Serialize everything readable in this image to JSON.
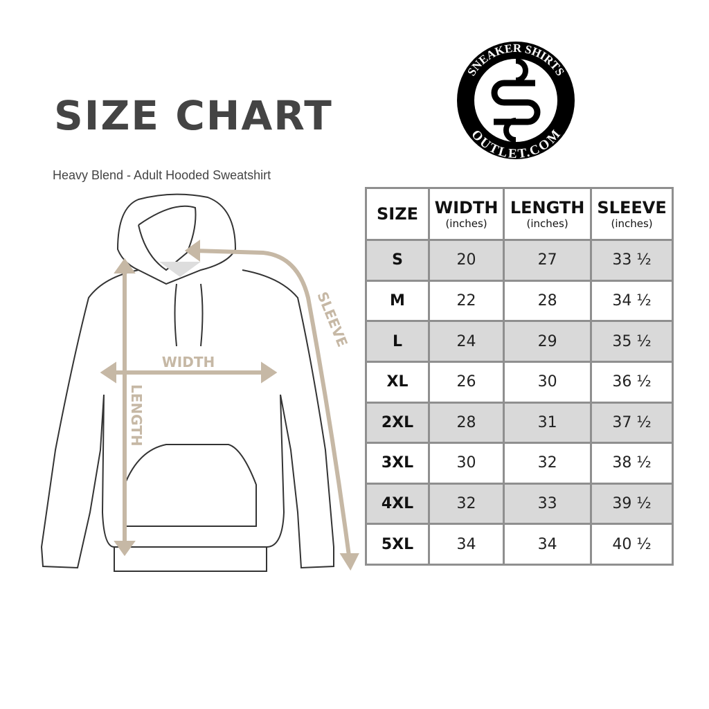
{
  "title": "SIZE CHART",
  "subtitle": "Heavy Blend - Adult Hooded Sweatshirt",
  "logo": {
    "top_text": "SNEAKER SHIRTS",
    "bottom_text": "OUTLET.COM",
    "monogram": "SS"
  },
  "diagram": {
    "width_label": "WIDTH",
    "length_label": "LENGTH",
    "sleeve_label": "SLEEVE",
    "accent_color": "#c6b8a5"
  },
  "table": {
    "headers": [
      {
        "label": "SIZE",
        "unit": ""
      },
      {
        "label": "WIDTH",
        "unit": "(inches)"
      },
      {
        "label": "LENGTH",
        "unit": "(inches)"
      },
      {
        "label": "SLEEVE",
        "unit": "(inches)"
      }
    ],
    "rows": [
      [
        "S",
        "20",
        "27",
        "33 ½"
      ],
      [
        "M",
        "22",
        "28",
        "34 ½"
      ],
      [
        "L",
        "24",
        "29",
        "35 ½"
      ],
      [
        "XL",
        "26",
        "30",
        "36 ½"
      ],
      [
        "2XL",
        "28",
        "31",
        "37 ½"
      ],
      [
        "3XL",
        "30",
        "32",
        "38 ½"
      ],
      [
        "4XL",
        "32",
        "33",
        "39 ½"
      ],
      [
        "5XL",
        "34",
        "34",
        "40 ½"
      ]
    ]
  }
}
